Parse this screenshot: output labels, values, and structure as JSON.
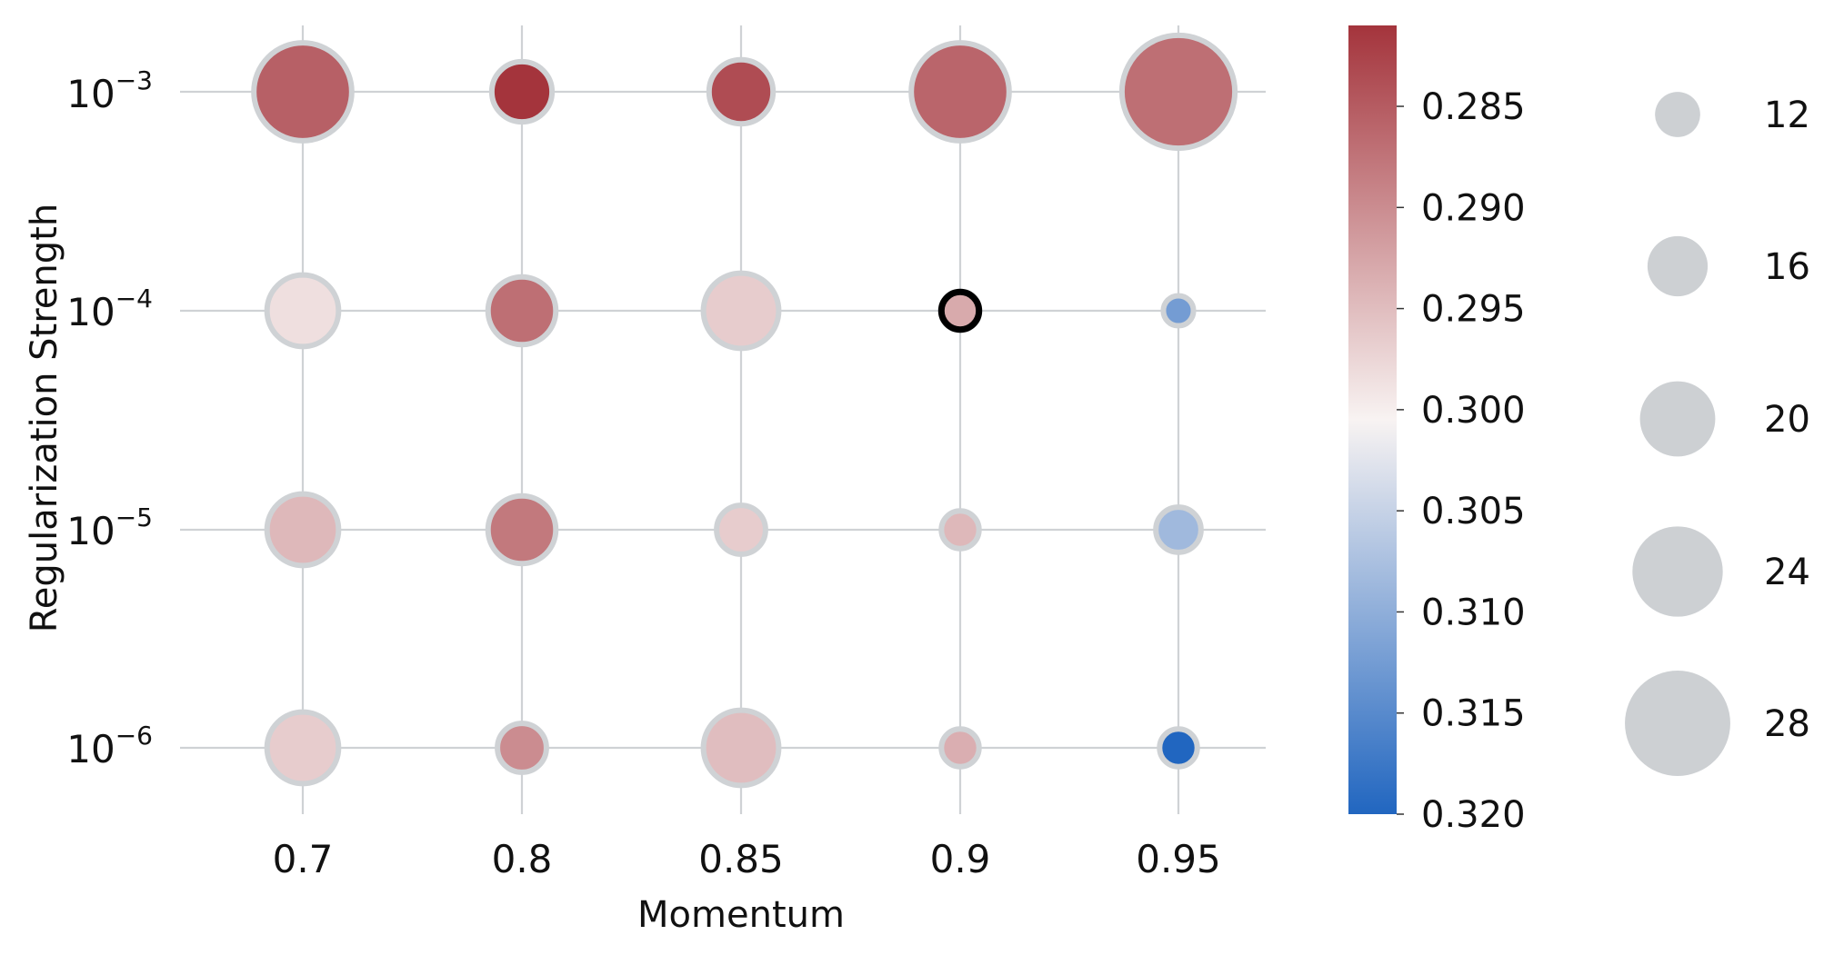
{
  "chart_data": {
    "type": "scatter",
    "xlabel": "Momentum",
    "ylabel": "Regularization Strength",
    "x_categories": [
      "0.7",
      "0.8",
      "0.85",
      "0.9",
      "0.95"
    ],
    "y_categories": [
      {
        "base": "10",
        "exp": "−3"
      },
      {
        "base": "10",
        "exp": "−4"
      },
      {
        "base": "10",
        "exp": "−5"
      },
      {
        "base": "10",
        "exp": "−6"
      }
    ],
    "grid": true,
    "points": [
      {
        "x": "0.7",
        "y": "1e-3",
        "value": 0.2855,
        "size": 26
      },
      {
        "x": "0.8",
        "y": "1e-3",
        "value": 0.281,
        "size": 16
      },
      {
        "x": "0.85",
        "y": "1e-3",
        "value": 0.2835,
        "size": 17
      },
      {
        "x": "0.9",
        "y": "1e-3",
        "value": 0.286,
        "size": 26
      },
      {
        "x": "0.95",
        "y": "1e-3",
        "value": 0.287,
        "size": 30
      },
      {
        "x": "0.7",
        "y": "1e-4",
        "value": 0.2985,
        "size": 19
      },
      {
        "x": "0.8",
        "y": "1e-4",
        "value": 0.287,
        "size": 18
      },
      {
        "x": "0.85",
        "y": "1e-4",
        "value": 0.2965,
        "size": 20
      },
      {
        "x": "0.9",
        "y": "1e-4",
        "value": 0.293,
        "size": 10,
        "highlight": true
      },
      {
        "x": "0.95",
        "y": "1e-4",
        "value": 0.3125,
        "size": 8
      },
      {
        "x": "0.7",
        "y": "1e-5",
        "value": 0.2945,
        "size": 19
      },
      {
        "x": "0.8",
        "y": "1e-5",
        "value": 0.288,
        "size": 18
      },
      {
        "x": "0.85",
        "y": "1e-5",
        "value": 0.2965,
        "size": 13
      },
      {
        "x": "0.9",
        "y": "1e-5",
        "value": 0.2945,
        "size": 10
      },
      {
        "x": "0.95",
        "y": "1e-5",
        "value": 0.3085,
        "size": 12
      },
      {
        "x": "0.7",
        "y": "1e-6",
        "value": 0.2965,
        "size": 19
      },
      {
        "x": "0.8",
        "y": "1e-6",
        "value": 0.29,
        "size": 13
      },
      {
        "x": "0.85",
        "y": "1e-6",
        "value": 0.295,
        "size": 20
      },
      {
        "x": "0.9",
        "y": "1e-6",
        "value": 0.2935,
        "size": 10
      },
      {
        "x": "0.95",
        "y": "1e-6",
        "value": 0.32,
        "size": 10
      }
    ],
    "colorbar": {
      "min": 0.281,
      "max": 0.32,
      "reversed": true,
      "ticks": [
        "0.285",
        "0.290",
        "0.295",
        "0.300",
        "0.305",
        "0.310",
        "0.315",
        "0.320"
      ],
      "colors": [
        "#a4343c",
        "#f8f3f2",
        "#2166c0"
      ]
    },
    "size_legend": [
      {
        "label": "12",
        "size": 12
      },
      {
        "label": "16",
        "size": 16
      },
      {
        "label": "20",
        "size": 20
      },
      {
        "label": "24",
        "size": 24
      },
      {
        "label": "28",
        "size": 28
      }
    ],
    "marker_edge_color": "#cfd2d5",
    "highlight_edge_color": "#000000",
    "grid_color": "#cfd2d5"
  }
}
